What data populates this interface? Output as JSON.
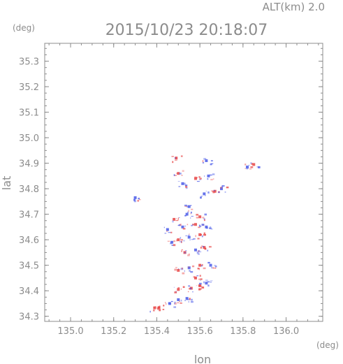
{
  "header": {
    "altitude_label": "ALT(km)  2.0",
    "timestamp": "2015/10/23 20:18:07"
  },
  "chart_data": {
    "type": "scatter",
    "title": "2015/10/23 20:18:07",
    "xlabel": "lon",
    "ylabel": "lat",
    "xunit": "(deg)",
    "yunit": "(deg)",
    "xlim": [
      134.88,
      136.17
    ],
    "ylim": [
      34.28,
      35.37
    ],
    "xticks": [
      "135.0",
      "135.2",
      "135.4",
      "135.6",
      "135.8",
      "136.0"
    ],
    "yticks": [
      "34.3",
      "34.4",
      "34.5",
      "34.6",
      "34.7",
      "34.8",
      "34.9",
      "35.0",
      "35.1",
      "35.2",
      "35.3"
    ],
    "grid": false,
    "colors": {
      "positive": "#e84545",
      "negative": "#4a5ae8",
      "axis": "#8c8c8c"
    },
    "series": [
      {
        "values": [
          {
            "x": 135.39,
            "y": 34.333,
            "v": 1
          },
          {
            "x": 135.41,
            "y": 34.333,
            "v": 1
          },
          {
            "x": 135.46,
            "y": 34.35,
            "v": -1
          },
          {
            "x": 135.5,
            "y": 34.365,
            "v": -1
          },
          {
            "x": 135.54,
            "y": 34.37,
            "v": -1
          },
          {
            "x": 135.5,
            "y": 34.405,
            "v": 1
          },
          {
            "x": 135.56,
            "y": 34.41,
            "v": 1
          },
          {
            "x": 135.6,
            "y": 34.42,
            "v": 1
          },
          {
            "x": 135.63,
            "y": 34.43,
            "v": -1
          },
          {
            "x": 135.58,
            "y": 34.45,
            "v": 1
          },
          {
            "x": 135.5,
            "y": 34.48,
            "v": 1
          },
          {
            "x": 135.55,
            "y": 34.49,
            "v": -1
          },
          {
            "x": 135.6,
            "y": 34.5,
            "v": 1
          },
          {
            "x": 135.65,
            "y": 34.5,
            "v": -1
          },
          {
            "x": 135.53,
            "y": 34.55,
            "v": 1
          },
          {
            "x": 135.58,
            "y": 34.56,
            "v": -1
          },
          {
            "x": 135.62,
            "y": 34.57,
            "v": 1
          },
          {
            "x": 135.47,
            "y": 34.59,
            "v": -1
          },
          {
            "x": 135.5,
            "y": 34.6,
            "v": 1
          },
          {
            "x": 135.55,
            "y": 34.61,
            "v": -1
          },
          {
            "x": 135.6,
            "y": 34.62,
            "v": 1
          },
          {
            "x": 135.45,
            "y": 34.64,
            "v": -1
          },
          {
            "x": 135.52,
            "y": 34.65,
            "v": -1
          },
          {
            "x": 135.58,
            "y": 34.66,
            "v": 1
          },
          {
            "x": 135.63,
            "y": 34.65,
            "v": -1
          },
          {
            "x": 135.48,
            "y": 34.68,
            "v": 1
          },
          {
            "x": 135.54,
            "y": 34.7,
            "v": -1
          },
          {
            "x": 135.6,
            "y": 34.69,
            "v": 1
          },
          {
            "x": 135.55,
            "y": 34.73,
            "v": -1
          },
          {
            "x": 135.3,
            "y": 34.765,
            "v": -1
          },
          {
            "x": 135.62,
            "y": 34.78,
            "v": -1
          },
          {
            "x": 135.67,
            "y": 34.79,
            "v": 1
          },
          {
            "x": 135.7,
            "y": 34.8,
            "v": -1
          },
          {
            "x": 135.52,
            "y": 34.82,
            "v": -1
          },
          {
            "x": 135.58,
            "y": 34.84,
            "v": 1
          },
          {
            "x": 135.64,
            "y": 34.85,
            "v": -1
          },
          {
            "x": 135.5,
            "y": 34.86,
            "v": 1
          },
          {
            "x": 135.49,
            "y": 34.92,
            "v": 1
          },
          {
            "x": 135.63,
            "y": 34.91,
            "v": -1
          },
          {
            "x": 135.82,
            "y": 34.885,
            "v": -1
          },
          {
            "x": 135.85,
            "y": 34.895,
            "v": 1
          }
        ]
      }
    ]
  }
}
